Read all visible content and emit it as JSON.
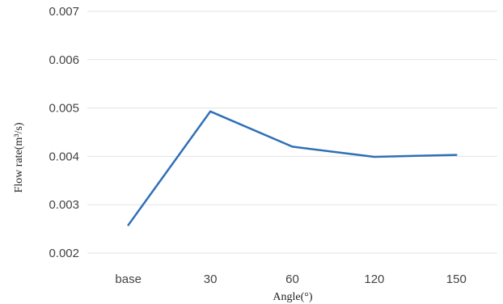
{
  "chart_data": {
    "type": "line",
    "categories": [
      "base",
      "30",
      "60",
      "120",
      "150"
    ],
    "series": [
      {
        "values": [
          0.00258,
          0.00493,
          0.0042,
          0.00399,
          0.00403
        ],
        "color": "#2f6fb7"
      }
    ],
    "xlabel": "Angle(°)",
    "ylabel": "Flow rate(m³/s)",
    "ylim": [
      0.002,
      0.007
    ],
    "yticks": [
      "0.007",
      "0.006",
      "0.005",
      "0.004",
      "0.003",
      "0.002"
    ],
    "grid": true,
    "legend": "none"
  }
}
